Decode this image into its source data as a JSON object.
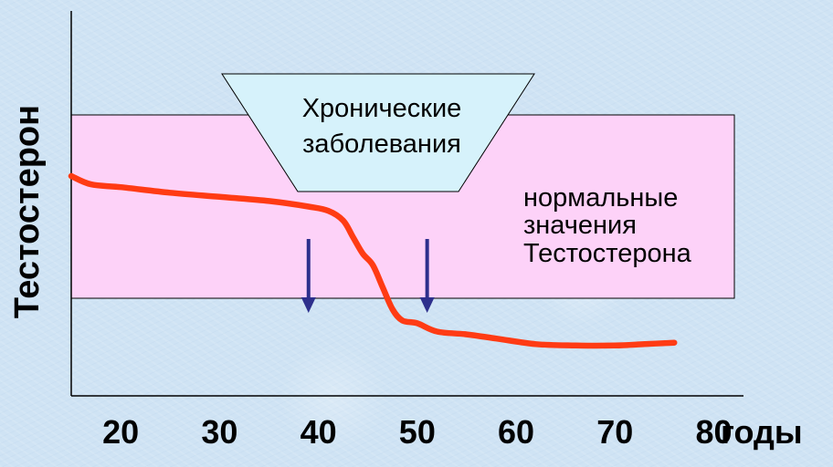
{
  "chart_data": {
    "type": "line",
    "title": "",
    "ylabel": "Тестостерон",
    "xunit_label": "годы",
    "x_ticks": [
      20,
      30,
      40,
      50,
      60,
      70,
      80
    ],
    "xlim": [
      15,
      83
    ],
    "ylim": [
      0,
      100
    ],
    "grid": false,
    "normal_range": {
      "low": 34,
      "high": 100,
      "label_lines": [
        "нормальные",
        "значения",
        "Тестостерона"
      ]
    },
    "chronic_box": {
      "label_lines": [
        "Хронические",
        "заболевания"
      ]
    },
    "arrows_at_x": [
      39,
      51
    ],
    "series": [
      {
        "color": "#ff3b14",
        "points": [
          [
            15,
            78
          ],
          [
            17,
            75
          ],
          [
            20,
            74
          ],
          [
            25,
            72
          ],
          [
            30,
            70.5
          ],
          [
            35,
            69
          ],
          [
            39,
            67
          ],
          [
            41,
            65.5
          ],
          [
            42.5,
            62
          ],
          [
            43.5,
            56
          ],
          [
            44.5,
            50
          ],
          [
            45.5,
            46
          ],
          [
            46.5,
            38
          ],
          [
            47.5,
            30
          ],
          [
            48.5,
            26
          ],
          [
            50,
            25
          ],
          [
            52,
            22
          ],
          [
            55,
            21
          ],
          [
            58,
            19.5
          ],
          [
            62,
            17.5
          ],
          [
            66,
            17
          ],
          [
            70,
            17
          ],
          [
            73,
            17.5
          ],
          [
            76,
            18
          ]
        ]
      }
    ]
  }
}
